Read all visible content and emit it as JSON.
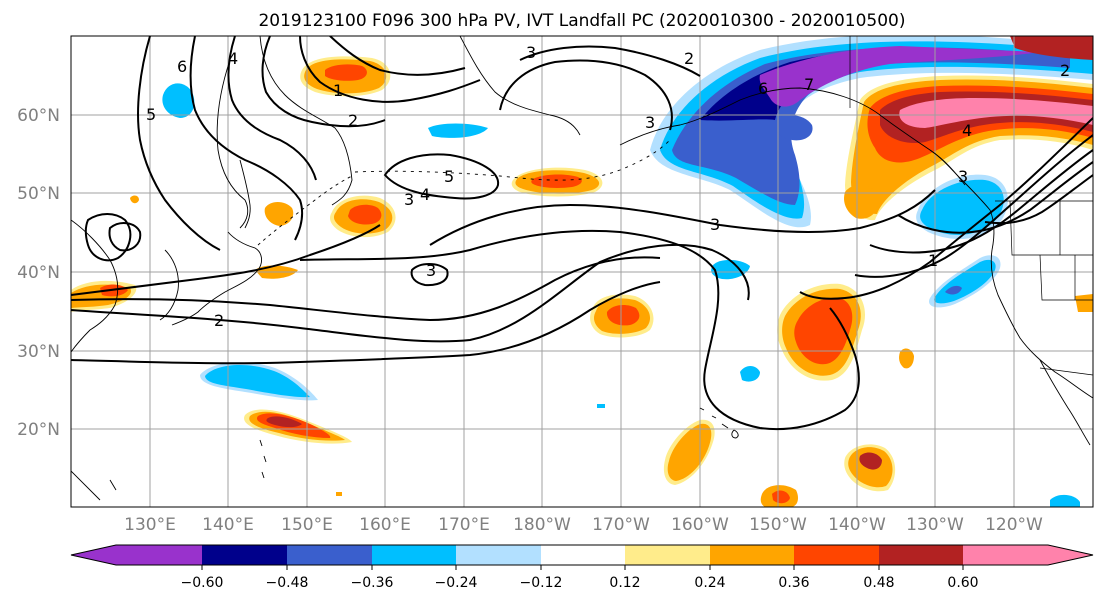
{
  "title": "2019123100 F096 300 hPa PV, IVT Landfall PC (2020010300 - 2020010500)",
  "map": {
    "lat_ticks": [
      "60°N",
      "50°N",
      "40°N",
      "30°N",
      "20°N"
    ],
    "lon_ticks": [
      "130°E",
      "140°E",
      "150°E",
      "160°E",
      "170°E",
      "180°W",
      "170°W",
      "160°W",
      "150°W",
      "140°W",
      "130°W",
      "120°W"
    ],
    "contour_labels": [
      "6",
      "4",
      "5",
      "3",
      "3",
      "1",
      "2",
      "5",
      "3",
      "4",
      "3",
      "3",
      "1",
      "2",
      "2",
      "6",
      "7",
      "2",
      "3",
      "4"
    ]
  },
  "colorbar": {
    "ticks": [
      "−0.60",
      "−0.48",
      "−0.36",
      "−0.24",
      "−0.12",
      "0.12",
      "0.24",
      "0.36",
      "0.48",
      "0.60"
    ],
    "colors": [
      "#9932cc",
      "#00008b",
      "#3a5fcd",
      "#00bfff",
      "#b2e0ff",
      "#ffffff",
      "#ffec8b",
      "#ffa500",
      "#ff4500",
      "#b22222",
      "#ff82ab"
    ]
  },
  "colors": {
    "contour": "#000000",
    "coast": "#000000",
    "grid": "#a0a0a0"
  }
}
